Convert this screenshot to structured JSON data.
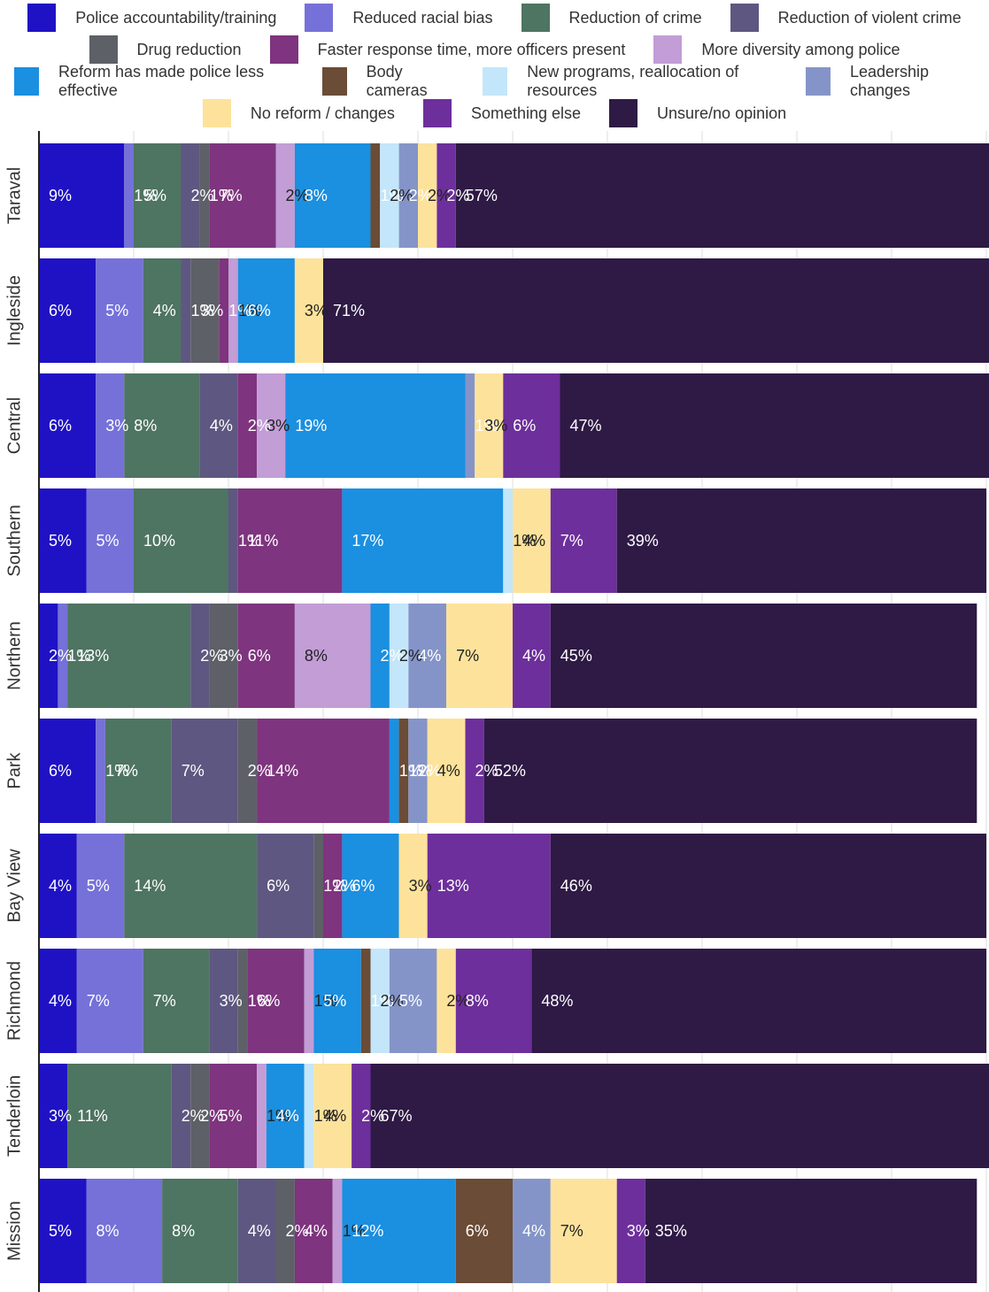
{
  "chart_data": {
    "type": "bar",
    "orientation": "horizontal",
    "stacked": true,
    "categories": [
      "Taraval",
      "Ingleside",
      "Central",
      "Southern",
      "Northern",
      "Park",
      "Bay View",
      "Richmond",
      "Tenderloin",
      "Mission"
    ],
    "series": [
      {
        "name": "Police accountability/training",
        "color": "#1f12c4",
        "values": [
          9,
          6,
          6,
          5,
          2,
          6,
          4,
          4,
          3,
          5
        ],
        "value_labels": [
          "9%",
          "6%",
          "6%",
          "5%",
          "2%",
          "6%",
          "4%",
          "4%",
          "3%",
          "5%"
        ]
      },
      {
        "name": "Reduced racial bias",
        "color": "#7571d9",
        "values": [
          1,
          5,
          3,
          5,
          1,
          1,
          5,
          7,
          0,
          8
        ],
        "value_labels": [
          "1%",
          "5%",
          "3%",
          "5%",
          "1%",
          "1%",
          "5%",
          "7%",
          null,
          "8%"
        ]
      },
      {
        "name": "Reduction of crime",
        "color": "#4e7462",
        "values": [
          5,
          4,
          8,
          10,
          13,
          7,
          14,
          7,
          11,
          8
        ],
        "value_labels": [
          "5%",
          "4%",
          "8%",
          "10%",
          "13%",
          "7%",
          "14%",
          "7%",
          "11%",
          "8%"
        ]
      },
      {
        "name": "Reduction of violent crime",
        "color": "#5e5781",
        "values": [
          2,
          1,
          4,
          1,
          2,
          7,
          6,
          3,
          2,
          4
        ],
        "value_labels": [
          "2%",
          "1%",
          "4%",
          "1%",
          "2%",
          "7%",
          "6%",
          "3%",
          "2%",
          "4%"
        ]
      },
      {
        "name": "Drug reduction",
        "color": "#5d6066",
        "values": [
          1,
          3,
          0,
          0,
          3,
          2,
          1,
          1,
          2,
          2
        ],
        "value_labels": [
          "1%",
          "3%",
          null,
          null,
          "3%",
          "2%",
          "1%",
          "1%",
          "2%",
          "2%"
        ]
      },
      {
        "name": "Faster response time, more officers present",
        "color": "#7e347e",
        "values": [
          7,
          1,
          2,
          11,
          6,
          14,
          2,
          6,
          5,
          4
        ],
        "value_labels": [
          "7%",
          "1%",
          "2%",
          "11%",
          "6%",
          "14%",
          "2%",
          "6%",
          "5%",
          "4%"
        ]
      },
      {
        "name": "More diversity among police",
        "color": "#c29dd6",
        "values": [
          2,
          1,
          3,
          0,
          8,
          0,
          0,
          1,
          1,
          1
        ],
        "value_labels": [
          "2%",
          "1%",
          "3%",
          null,
          "8%",
          null,
          null,
          "1%",
          "1%",
          "1%"
        ]
      },
      {
        "name": "Reform has made police less effective",
        "color": "#1b8fe0",
        "values": [
          8,
          6,
          19,
          17,
          2,
          1,
          6,
          5,
          4,
          12
        ],
        "value_labels": [
          "8%",
          "6%",
          "19%",
          "17%",
          "2%",
          "1%",
          "6%",
          "5%",
          "4%",
          "12%"
        ]
      },
      {
        "name": "Body cameras",
        "color": "#6b4c36",
        "values": [
          1,
          0,
          0,
          0,
          0,
          1,
          0,
          1,
          0,
          6
        ],
        "value_labels": [
          "1%",
          null,
          null,
          null,
          null,
          "1%",
          null,
          "1%",
          null,
          "6%"
        ]
      },
      {
        "name": "New programs, reallocation of resources",
        "color": "#c3e6fb",
        "values": [
          2,
          0,
          0,
          1,
          2,
          0,
          0,
          2,
          1,
          0
        ],
        "value_labels": [
          "2%",
          null,
          null,
          "1%",
          "2%",
          null,
          null,
          "2%",
          "1%",
          null
        ]
      },
      {
        "name": "Leadership changes",
        "color": "#8594c8",
        "values": [
          2,
          0,
          1,
          0,
          4,
          2,
          0,
          5,
          0,
          4
        ],
        "value_labels": [
          "2%",
          null,
          "1%",
          null,
          "4%",
          "2%",
          null,
          "5%",
          null,
          "4%"
        ]
      },
      {
        "name": "No reform / changes",
        "color": "#fde29b",
        "values": [
          2,
          3,
          3,
          4,
          7,
          4,
          3,
          2,
          4,
          7
        ],
        "value_labels": [
          "2%",
          "3%",
          "3%",
          "4%",
          "7%",
          "4%",
          "3%",
          "2%",
          "4%",
          "7%"
        ]
      },
      {
        "name": "Something else",
        "color": "#6d2f9b",
        "values": [
          2,
          0,
          6,
          7,
          4,
          2,
          13,
          8,
          2,
          3
        ],
        "value_labels": [
          "2%",
          null,
          "6%",
          "7%",
          "4%",
          "2%",
          "13%",
          "8%",
          "2%",
          "3%"
        ]
      },
      {
        "name": "Unsure/no opinion",
        "color": "#2e1a45",
        "values": [
          57,
          71,
          47,
          39,
          45,
          52,
          46,
          48,
          67,
          35
        ],
        "value_labels": [
          "57%",
          "71%",
          "47%",
          "39%",
          "45%",
          "52%",
          "46%",
          "48%",
          "67%",
          "35%"
        ]
      }
    ],
    "xlim": [
      0,
      100
    ],
    "xticks": [
      0,
      10,
      20,
      30,
      40,
      50,
      60,
      70,
      80,
      90,
      100
    ],
    "grid": true
  }
}
